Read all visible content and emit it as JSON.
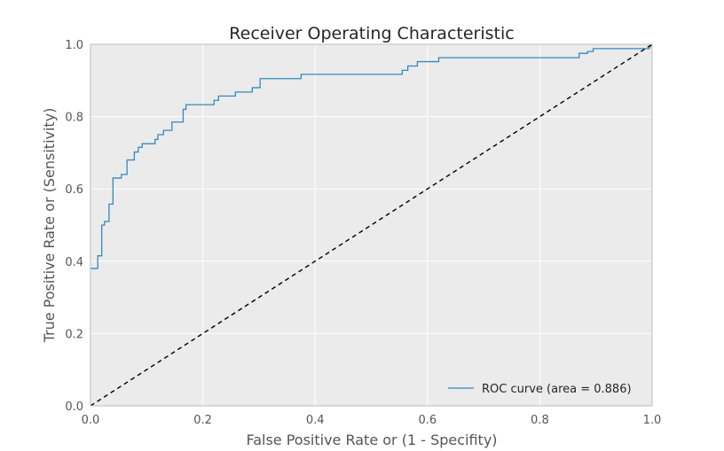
{
  "chart_data": {
    "type": "line",
    "title": "Receiver Operating Characteristic",
    "xlabel": "False Positive Rate or (1 - Specifity)",
    "ylabel": "True Positive Rate or (Sensitivity)",
    "xlim": [
      0,
      1
    ],
    "ylim": [
      0,
      1
    ],
    "xticks": [
      "0.0",
      "0.2",
      "0.4",
      "0.6",
      "0.8",
      "1.0"
    ],
    "yticks": [
      "0.0",
      "0.2",
      "0.4",
      "0.6",
      "0.8",
      "1.0"
    ],
    "grid": true,
    "legend_position": "bottom-right",
    "series": [
      {
        "name": "ROC curve (area = 0.886)",
        "color": "#348abd",
        "style": "solid",
        "x": [
          0.0,
          0.013,
          0.013,
          0.02,
          0.02,
          0.025,
          0.025,
          0.033,
          0.033,
          0.04,
          0.04,
          0.055,
          0.055,
          0.065,
          0.065,
          0.078,
          0.078,
          0.085,
          0.085,
          0.092,
          0.092,
          0.115,
          0.115,
          0.12,
          0.12,
          0.13,
          0.13,
          0.145,
          0.145,
          0.165,
          0.165,
          0.17,
          0.17,
          0.22,
          0.22,
          0.228,
          0.228,
          0.258,
          0.258,
          0.288,
          0.288,
          0.302,
          0.302,
          0.375,
          0.375,
          0.555,
          0.555,
          0.565,
          0.565,
          0.582,
          0.582,
          0.62,
          0.62,
          0.87,
          0.87,
          0.885,
          0.885,
          0.895,
          0.895,
          0.995,
          0.995,
          1.0
        ],
        "y": [
          0.38,
          0.38,
          0.415,
          0.415,
          0.5,
          0.5,
          0.51,
          0.51,
          0.558,
          0.558,
          0.63,
          0.63,
          0.64,
          0.64,
          0.68,
          0.68,
          0.702,
          0.702,
          0.715,
          0.715,
          0.725,
          0.725,
          0.737,
          0.737,
          0.75,
          0.75,
          0.762,
          0.762,
          0.785,
          0.785,
          0.82,
          0.82,
          0.833,
          0.833,
          0.845,
          0.845,
          0.857,
          0.857,
          0.868,
          0.868,
          0.88,
          0.88,
          0.905,
          0.905,
          0.917,
          0.917,
          0.928,
          0.928,
          0.94,
          0.94,
          0.952,
          0.952,
          0.963,
          0.963,
          0.975,
          0.975,
          0.98,
          0.98,
          0.988,
          0.988,
          0.99,
          1.0
        ]
      },
      {
        "name": "",
        "color": "#000000",
        "style": "dashed",
        "x": [
          0,
          1
        ],
        "y": [
          0,
          1
        ]
      }
    ]
  },
  "colors": {
    "plot_background": "#ebebeb",
    "grid": "#ffffff",
    "frame": "#bcbcbc"
  }
}
